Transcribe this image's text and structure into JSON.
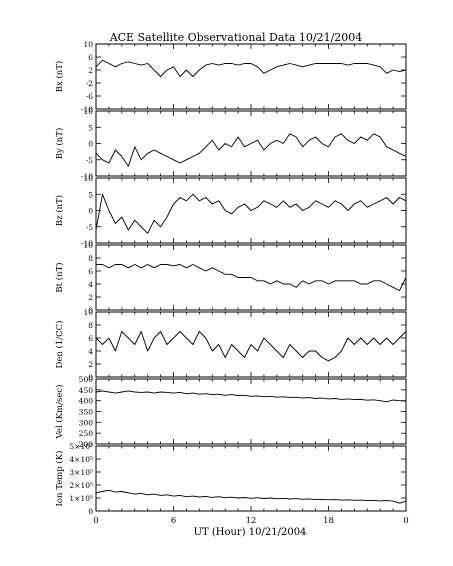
{
  "title": "ACE Satellite Observational Data   10/21/2004",
  "chart_data": {
    "type": "line",
    "title": "ACE Satellite Observational Data   10/21/2004",
    "xlabel": "UT (Hour)   10/21/2004",
    "xlim": [
      0,
      24
    ],
    "x_ticks": [
      "0",
      "6",
      "12",
      "18",
      "0"
    ],
    "grid": false,
    "panels": [
      {
        "ylabel": "Bx (nT)",
        "ylim": [
          -10,
          10
        ],
        "y_ticks": [
          {
            "v": -10,
            "label": "-10"
          },
          {
            "v": -6,
            "label": "-6"
          },
          {
            "v": -2,
            "label": "-2"
          },
          {
            "v": 2,
            "label": "2"
          },
          {
            "v": 6,
            "label": "6"
          },
          {
            "v": 10,
            "label": "10"
          }
        ],
        "series": [
          {
            "x": [
              0,
              0.5,
              1,
              1.5,
              2,
              2.5,
              3,
              3.5,
              4,
              4.5,
              5,
              5.5,
              6,
              6.5,
              7,
              7.5,
              8,
              8.5,
              9,
              9.5,
              10,
              10.5,
              11,
              11.5,
              12,
              12.5,
              13,
              13.5,
              14,
              14.5,
              15,
              15.5,
              16,
              16.5,
              17,
              17.5,
              18,
              18.5,
              19,
              19.5,
              20,
              20.5,
              21,
              21.5,
              22,
              22.5,
              23,
              23.5,
              24
            ],
            "y": [
              3,
              5,
              4,
              3,
              4,
              4.5,
              4,
              3.5,
              4,
              2,
              0,
              2,
              3,
              0,
              2,
              0,
              2,
              3.5,
              4,
              3.5,
              4,
              4,
              3.5,
              4,
              4,
              3,
              1,
              2,
              3,
              3.5,
              4,
              3.5,
              3,
              3.5,
              4,
              4,
              4,
              4,
              4,
              3.5,
              4,
              4,
              4,
              3.5,
              3,
              1,
              2,
              1.5,
              2
            ]
          }
        ]
      },
      {
        "ylabel": "By (nT)",
        "ylim": [
          -10,
          10
        ],
        "y_ticks": [
          {
            "v": -10,
            "label": "-10"
          },
          {
            "v": -5,
            "label": "-5"
          },
          {
            "v": 0,
            "label": "0"
          },
          {
            "v": 5,
            "label": "5"
          },
          {
            "v": 10,
            "label": "10"
          }
        ],
        "series": [
          {
            "x": [
              0,
              0.5,
              1,
              1.5,
              2,
              2.5,
              3,
              3.5,
              4,
              4.5,
              5,
              5.5,
              6,
              6.5,
              7,
              7.5,
              8,
              8.5,
              9,
              9.5,
              10,
              10.5,
              11,
              11.5,
              12,
              12.5,
              13,
              13.5,
              14,
              14.5,
              15,
              15.5,
              16,
              16.5,
              17,
              17.5,
              18,
              18.5,
              19,
              19.5,
              20,
              20.5,
              21,
              21.5,
              22,
              22.5,
              23,
              23.5,
              24
            ],
            "y": [
              -3,
              -5,
              -6,
              -2,
              -4,
              -7,
              -1,
              -5,
              -3,
              -2,
              -3,
              -4,
              -5,
              -6,
              -5,
              -4,
              -3,
              -1,
              1,
              -2,
              0,
              -1,
              2,
              -1,
              0,
              1,
              -2,
              0,
              1,
              0,
              3,
              2,
              -1,
              1,
              2,
              0,
              -1,
              2,
              3,
              1,
              0,
              2,
              1,
              3,
              2,
              -1,
              -2,
              -3,
              -4
            ]
          }
        ]
      },
      {
        "ylabel": "Bz (nT)",
        "ylim": [
          -10,
          10
        ],
        "y_ticks": [
          {
            "v": -10,
            "label": "-10"
          },
          {
            "v": -5,
            "label": "-5"
          },
          {
            "v": 0,
            "label": "0"
          },
          {
            "v": 5,
            "label": "5"
          },
          {
            "v": 10,
            "label": "10"
          }
        ],
        "series": [
          {
            "x": [
              0,
              0.5,
              1,
              1.5,
              2,
              2.5,
              3,
              3.5,
              4,
              4.5,
              5,
              5.5,
              6,
              6.5,
              7,
              7.5,
              8,
              8.5,
              9,
              9.5,
              10,
              10.5,
              11,
              11.5,
              12,
              12.5,
              13,
              13.5,
              14,
              14.5,
              15,
              15.5,
              16,
              16.5,
              17,
              17.5,
              18,
              18.5,
              19,
              19.5,
              20,
              20.5,
              21,
              21.5,
              22,
              22.5,
              23,
              23.5,
              24
            ],
            "y": [
              -6,
              5,
              0,
              -4,
              -2,
              -6,
              -3,
              -5,
              -7,
              -3,
              -5,
              -2,
              2,
              4,
              3,
              5,
              3,
              4,
              2,
              3,
              0,
              -1,
              1,
              2,
              0,
              1,
              3,
              2,
              1,
              3,
              1,
              2,
              0,
              1,
              3,
              2,
              1,
              3,
              2,
              0,
              2,
              3,
              1,
              2,
              3,
              4,
              2,
              4,
              3
            ]
          }
        ]
      },
      {
        "ylabel": "Bt (nT)",
        "ylim": [
          0,
          10
        ],
        "y_ticks": [
          {
            "v": 0,
            "label": "0"
          },
          {
            "v": 2,
            "label": "2"
          },
          {
            "v": 4,
            "label": "4"
          },
          {
            "v": 6,
            "label": "6"
          },
          {
            "v": 8,
            "label": "8"
          },
          {
            "v": 10,
            "label": "10"
          }
        ],
        "series": [
          {
            "x": [
              0,
              0.5,
              1,
              1.5,
              2,
              2.5,
              3,
              3.5,
              4,
              4.5,
              5,
              5.5,
              6,
              6.5,
              7,
              7.5,
              8,
              8.5,
              9,
              9.5,
              10,
              10.5,
              11,
              11.5,
              12,
              12.5,
              13,
              13.5,
              14,
              14.5,
              15,
              15.5,
              16,
              16.5,
              17,
              17.5,
              18,
              18.5,
              19,
              19.5,
              20,
              20.5,
              21,
              21.5,
              22,
              22.5,
              23,
              23.5,
              24
            ],
            "y": [
              7,
              7,
              6.5,
              7,
              7,
              6.5,
              7,
              6.5,
              7,
              6.5,
              7,
              7,
              6.8,
              7,
              6.5,
              7,
              6.5,
              6,
              6.5,
              6,
              5.5,
              5.5,
              5,
              5,
              5,
              4.5,
              4.5,
              4,
              4.5,
              4,
              4,
              3.5,
              4.5,
              4,
              4.5,
              4.5,
              4,
              4.5,
              4.5,
              4.5,
              4.5,
              4,
              4,
              4.5,
              4.5,
              4,
              3.5,
              3,
              5
            ]
          }
        ]
      },
      {
        "ylabel": "Den (1/CC)",
        "ylim": [
          0,
          10
        ],
        "y_ticks": [
          {
            "v": 0,
            "label": "0"
          },
          {
            "v": 2,
            "label": "2"
          },
          {
            "v": 4,
            "label": "4"
          },
          {
            "v": 6,
            "label": "6"
          },
          {
            "v": 8,
            "label": "8"
          },
          {
            "v": 10,
            "label": "10"
          }
        ],
        "series": [
          {
            "x": [
              0,
              0.5,
              1,
              1.5,
              2,
              2.5,
              3,
              3.5,
              4,
              4.5,
              5,
              5.5,
              6,
              6.5,
              7,
              7.5,
              8,
              8.5,
              9,
              9.5,
              10,
              10.5,
              11,
              11.5,
              12,
              12.5,
              13,
              13.5,
              14,
              14.5,
              15,
              15.5,
              16,
              16.5,
              17,
              17.5,
              18,
              18.5,
              19,
              19.5,
              20,
              20.5,
              21,
              21.5,
              22,
              22.5,
              23,
              23.5,
              24
            ],
            "y": [
              6,
              5,
              6,
              4,
              7,
              6,
              5,
              7,
              4,
              6,
              7,
              5,
              6,
              7,
              6,
              5,
              7,
              6,
              4,
              5,
              3,
              5,
              4,
              3,
              5,
              4,
              6,
              5,
              4,
              3,
              5,
              4,
              3,
              4,
              4,
              3,
              2.5,
              3,
              4,
              6,
              5,
              6,
              5,
              6,
              5,
              6,
              5,
              6,
              7
            ]
          }
        ]
      },
      {
        "ylabel": "Vel (Km/sec)",
        "ylim": [
          200,
          500
        ],
        "y_ticks": [
          {
            "v": 200,
            "label": "200"
          },
          {
            "v": 250,
            "label": "250"
          },
          {
            "v": 300,
            "label": "300"
          },
          {
            "v": 350,
            "label": "350"
          },
          {
            "v": 400,
            "label": "400"
          },
          {
            "v": 450,
            "label": "450"
          },
          {
            "v": 500,
            "label": "500"
          }
        ],
        "series": [
          {
            "x": [
              0,
              0.5,
              1,
              1.5,
              2,
              2.5,
              3,
              3.5,
              4,
              4.5,
              5,
              5.5,
              6,
              6.5,
              7,
              7.5,
              8,
              8.5,
              9,
              9.5,
              10,
              10.5,
              11,
              11.5,
              12,
              12.5,
              13,
              13.5,
              14,
              14.5,
              15,
              15.5,
              16,
              16.5,
              17,
              17.5,
              18,
              18.5,
              19,
              19.5,
              20,
              20.5,
              21,
              21.5,
              22,
              22.5,
              23,
              23.5,
              24
            ],
            "y": [
              440,
              445,
              440,
              435,
              440,
              445,
              440,
              438,
              440,
              435,
              440,
              438,
              435,
              438,
              432,
              435,
              430,
              432,
              428,
              430,
              425,
              428,
              424,
              425,
              420,
              422,
              418,
              420,
              416,
              418,
              415,
              416,
              412,
              414,
              410,
              412,
              408,
              410,
              406,
              408,
              405,
              406,
              402,
              404,
              400,
              395,
              403,
              400,
              398
            ]
          }
        ]
      },
      {
        "ylabel": "Ion Temp (K)",
        "ylim": [
          0,
          500000
        ],
        "y_ticks": [
          {
            "v": 0,
            "label": "0"
          },
          {
            "v": 100000,
            "label": "1×10⁵"
          },
          {
            "v": 200000,
            "label": "2×10⁵"
          },
          {
            "v": 300000,
            "label": "3×10⁵"
          },
          {
            "v": 400000,
            "label": "4×10⁵"
          },
          {
            "v": 500000,
            "label": "5×10⁵"
          }
        ],
        "series": [
          {
            "x": [
              0,
              0.5,
              1,
              1.5,
              2,
              2.5,
              3,
              3.5,
              4,
              4.5,
              5,
              5.5,
              6,
              6.5,
              7,
              7.5,
              8,
              8.5,
              9,
              9.5,
              10,
              10.5,
              11,
              11.5,
              12,
              12.5,
              13,
              13.5,
              14,
              14.5,
              15,
              15.5,
              16,
              16.5,
              17,
              17.5,
              18,
              18.5,
              19,
              19.5,
              20,
              20.5,
              21,
              21.5,
              22,
              22.5,
              23,
              23.5,
              24
            ],
            "y": [
              140000,
              150000,
              160000,
              145000,
              150000,
              140000,
              130000,
              135000,
              125000,
              130000,
              120000,
              125000,
              115000,
              120000,
              110000,
              115000,
              108000,
              112000,
              105000,
              110000,
              102000,
              106000,
              100000,
              104000,
              98000,
              102000,
              96000,
              100000,
              94000,
              98000,
              92000,
              95000,
              90000,
              93000,
              88000,
              90000,
              86000,
              88000,
              84000,
              86000,
              82000,
              84000,
              80000,
              82000,
              78000,
              80000,
              76000,
              60000,
              75000
            ]
          }
        ]
      }
    ]
  }
}
